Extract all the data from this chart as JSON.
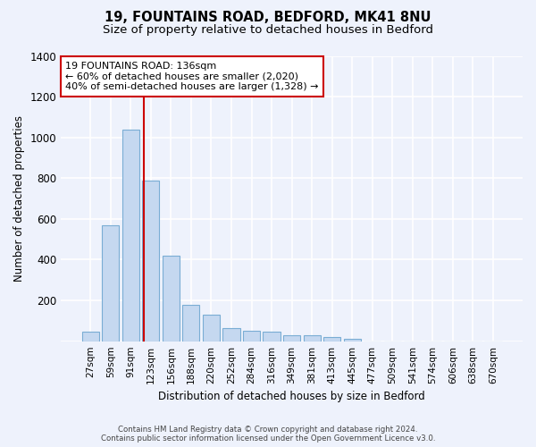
{
  "title1": "19, FOUNTAINS ROAD, BEDFORD, MK41 8NU",
  "title2": "Size of property relative to detached houses in Bedford",
  "xlabel": "Distribution of detached houses by size in Bedford",
  "ylabel": "Number of detached properties",
  "categories": [
    "27sqm",
    "59sqm",
    "91sqm",
    "123sqm",
    "156sqm",
    "188sqm",
    "220sqm",
    "252sqm",
    "284sqm",
    "316sqm",
    "349sqm",
    "381sqm",
    "413sqm",
    "445sqm",
    "477sqm",
    "509sqm",
    "541sqm",
    "574sqm",
    "606sqm",
    "638sqm",
    "670sqm"
  ],
  "values": [
    45,
    570,
    1040,
    790,
    420,
    180,
    130,
    65,
    50,
    45,
    30,
    28,
    20,
    12,
    0,
    0,
    0,
    0,
    0,
    0,
    0
  ],
  "bar_color": "#c5d8f0",
  "bar_edge_color": "#7aadd4",
  "vline_x": 3.0,
  "vline_color": "#cc0000",
  "annotation_text": "19 FOUNTAINS ROAD: 136sqm\n← 60% of detached houses are smaller (2,020)\n40% of semi-detached houses are larger (1,328) →",
  "annotation_box_color": "#ffffff",
  "annotation_box_edge_color": "#cc0000",
  "ylim": [
    0,
    1400
  ],
  "yticks": [
    0,
    200,
    400,
    600,
    800,
    1000,
    1200,
    1400
  ],
  "footer1": "Contains HM Land Registry data © Crown copyright and database right 2024.",
  "footer2": "Contains public sector information licensed under the Open Government Licence v3.0.",
  "bg_color": "#eef2fc",
  "plot_bg_color": "#eef2fc",
  "grid_color": "#ffffff",
  "title1_fontsize": 10.5,
  "title2_fontsize": 9.5,
  "bar_width": 0.85
}
